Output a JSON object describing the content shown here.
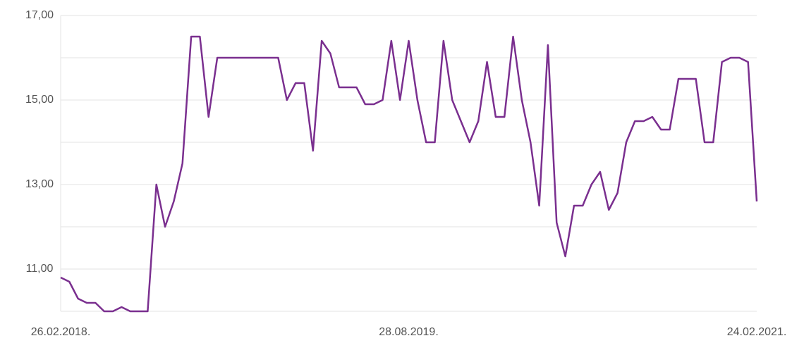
{
  "chart_data": {
    "type": "line",
    "categories": [
      "26.02.2018.",
      null,
      null,
      null,
      null,
      null,
      null,
      null,
      null,
      null,
      null,
      null,
      null,
      null,
      null,
      null,
      null,
      null,
      null,
      null,
      null,
      null,
      null,
      null,
      null,
      null,
      null,
      null,
      null,
      null,
      null,
      null,
      null,
      null,
      null,
      null,
      null,
      null,
      null,
      null,
      "28.08.2019.",
      null,
      null,
      null,
      null,
      null,
      null,
      null,
      null,
      null,
      null,
      null,
      null,
      null,
      null,
      null,
      null,
      null,
      null,
      null,
      null,
      null,
      null,
      null,
      null,
      null,
      null,
      null,
      null,
      null,
      null,
      null,
      null,
      null,
      null,
      null,
      null,
      null,
      null,
      null,
      "24.02.2021."
    ],
    "series": [
      {
        "color": "#7a2f8f",
        "values": [
          10.8,
          10.7,
          10.3,
          10.2,
          10.2,
          10.0,
          10.0,
          10.1,
          10.0,
          10.0,
          10.0,
          13.0,
          12.0,
          12.6,
          13.5,
          16.5,
          16.5,
          14.6,
          16.0,
          16.0,
          16.0,
          16.0,
          16.0,
          16.0,
          16.0,
          16.0,
          15.0,
          15.4,
          15.4,
          13.8,
          16.4,
          16.1,
          15.3,
          15.3,
          15.3,
          14.9,
          14.9,
          15.0,
          16.4,
          15.0,
          16.4,
          15.0,
          14.0,
          14.0,
          16.4,
          15.0,
          14.5,
          14.0,
          14.5,
          15.9,
          14.6,
          14.6,
          16.5,
          15.0,
          14.0,
          12.5,
          16.3,
          12.1,
          11.3,
          12.5,
          12.5,
          13.0,
          13.3,
          12.4,
          12.8,
          14.0,
          14.5,
          14.5,
          14.6,
          14.3,
          14.3,
          15.5,
          15.5,
          15.5,
          14.0,
          14.0,
          15.9,
          16.0,
          16.0,
          15.9,
          12.6
        ]
      }
    ],
    "ylim": [
      10,
      17
    ],
    "yticks": [
      {
        "value": 11,
        "label": "11,00"
      },
      {
        "value": 13,
        "label": "13,00"
      },
      {
        "value": 15,
        "label": "15,00"
      },
      {
        "value": 17,
        "label": "17,00"
      }
    ],
    "ygrid": [
      10,
      12,
      14,
      16
    ],
    "grid": true
  }
}
